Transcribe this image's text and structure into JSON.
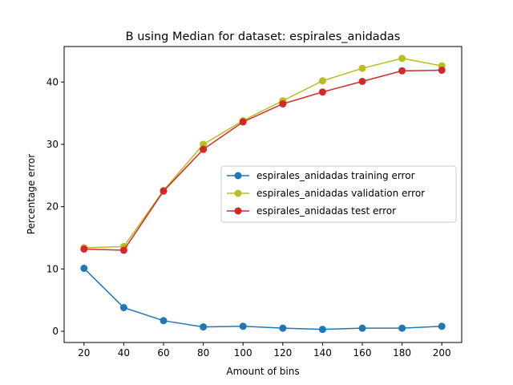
{
  "chart_data": {
    "type": "line",
    "title": "B using Median for dataset: espirales_anidadas",
    "xlabel": "Amount of bins",
    "ylabel": "Percentage error",
    "x": [
      20,
      40,
      60,
      80,
      100,
      120,
      140,
      160,
      180,
      200
    ],
    "xlim": [
      10,
      210
    ],
    "ylim": [
      -1.8,
      45.7
    ],
    "xticks": [
      20,
      40,
      60,
      80,
      100,
      120,
      140,
      160,
      180,
      200
    ],
    "yticks": [
      0,
      10,
      20,
      30,
      40
    ],
    "grid": false,
    "legend_position": "center-right",
    "series": [
      {
        "name": "espirales_anidadas training error",
        "color": "#1f77b4",
        "values": [
          10.1,
          3.8,
          1.7,
          0.7,
          0.8,
          0.5,
          0.3,
          0.5,
          0.5,
          0.8
        ]
      },
      {
        "name": "espirales_anidadas validation error",
        "color": "#bcbd22",
        "values": [
          13.4,
          13.6,
          22.6,
          30.0,
          33.8,
          37.0,
          40.2,
          42.2,
          43.8,
          42.6
        ]
      },
      {
        "name": "espirales_anidadas test error",
        "color": "#d62728",
        "values": [
          13.2,
          13.0,
          22.5,
          29.2,
          33.6,
          36.5,
          38.4,
          40.1,
          41.8,
          41.9
        ]
      }
    ]
  }
}
